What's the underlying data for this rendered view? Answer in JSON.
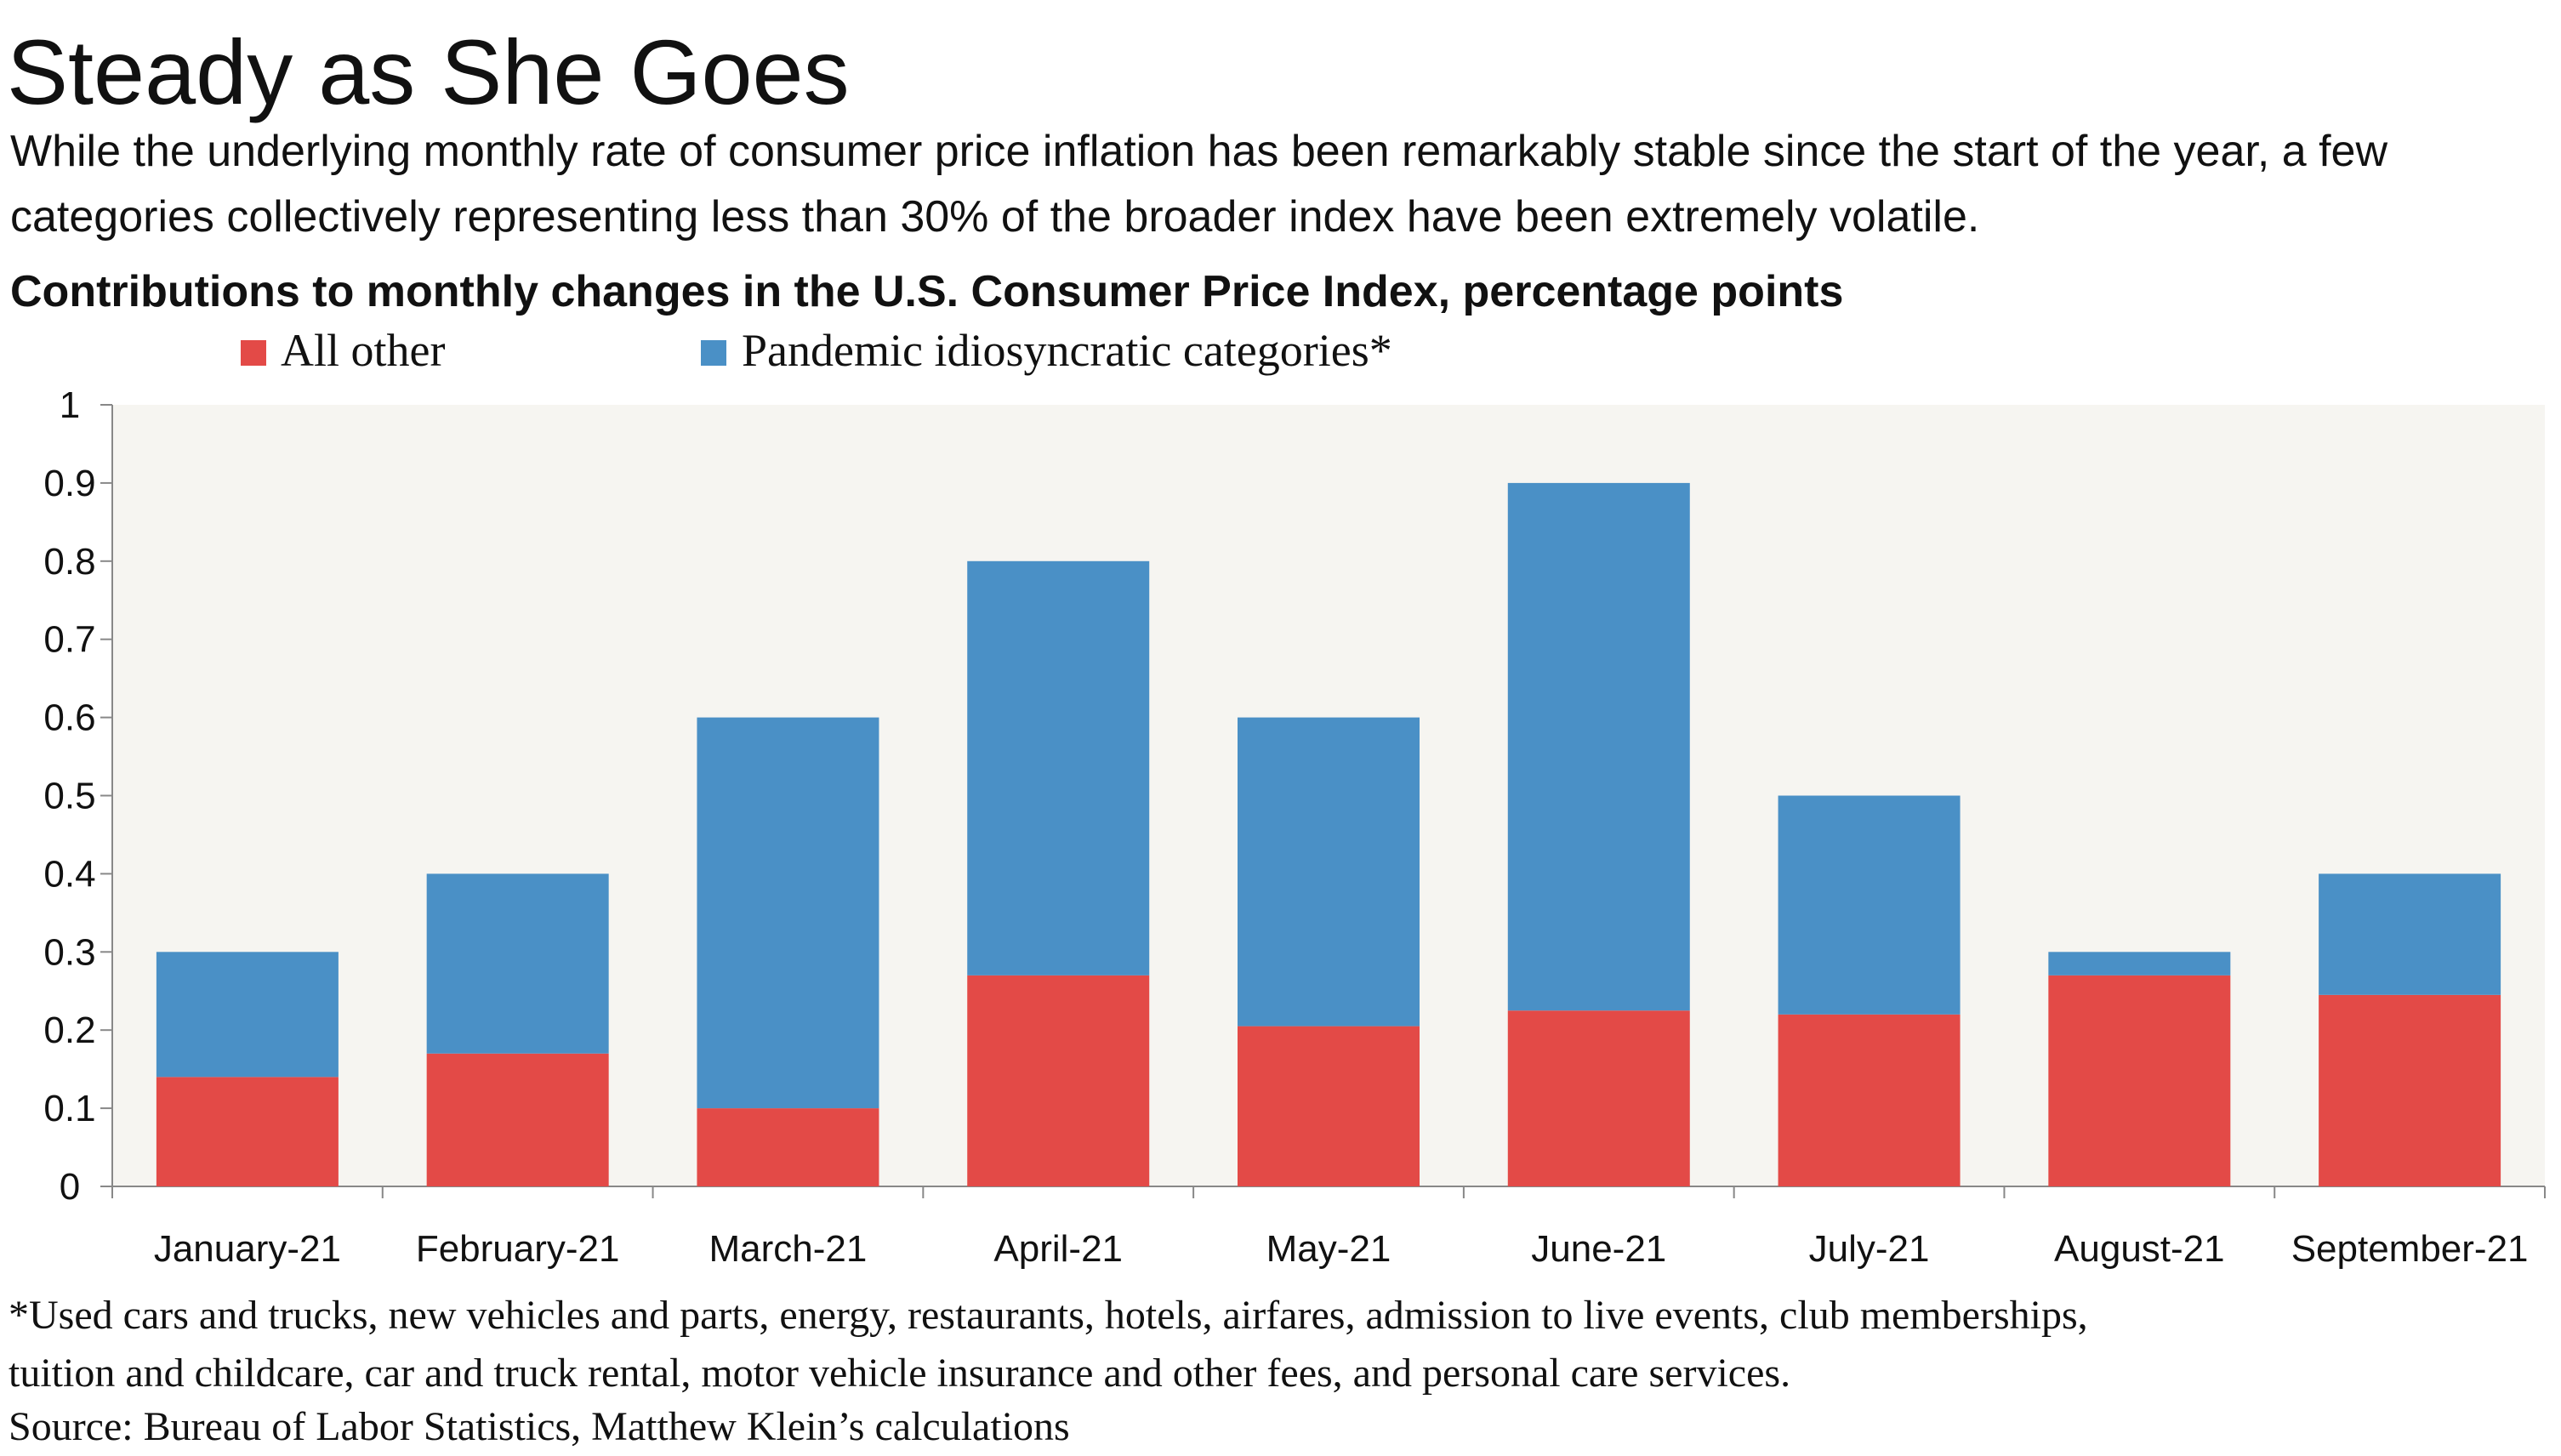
{
  "title": "Steady as She Goes",
  "subtitle_lines": [
    "While the underlying monthly rate of consumer price inflation has been remarkably stable since the start of the year, a few",
    "categories collectively representing less than 30% of the broader index have been extremely volatile."
  ],
  "footnote_lines": [
    "*Used cars and trucks, new vehicles and parts, energy, restaurants, hotels, airfares, admission to live events, club memberships,",
    "tuition and childcare, car and truck rental, motor vehicle insurance and other fees, and personal care services."
  ],
  "source": "Source: Bureau of Labor Statistics, Matthew Klein’s calculations",
  "chart_data": {
    "type": "bar",
    "stacked": true,
    "title": "Contributions to monthly changes in the U.S. Consumer Price Index, percentage points",
    "categories": [
      "January-21",
      "February-21",
      "March-21",
      "April-21",
      "May-21",
      "June-21",
      "July-21",
      "August-21",
      "September-21"
    ],
    "series": [
      {
        "name": "All other",
        "color": "#e34a47",
        "values": [
          0.14,
          0.17,
          0.1,
          0.27,
          0.205,
          0.225,
          0.22,
          0.27,
          0.245
        ]
      },
      {
        "name": "Pandemic idiosyncratic categories*",
        "color": "#4a90c6",
        "values": [
          0.16,
          0.23,
          0.5,
          0.53,
          0.395,
          0.675,
          0.28,
          0.03,
          0.155
        ]
      }
    ],
    "ylim": [
      0,
      1
    ],
    "yticks": [
      "0",
      "0.1",
      "0.2",
      "0.3",
      "0.4",
      "0.5",
      "0.6",
      "0.7",
      "0.8",
      "0.9",
      "1"
    ],
    "legend_position": "top-left",
    "grid": false,
    "plot_background": "#f6f5f1"
  }
}
